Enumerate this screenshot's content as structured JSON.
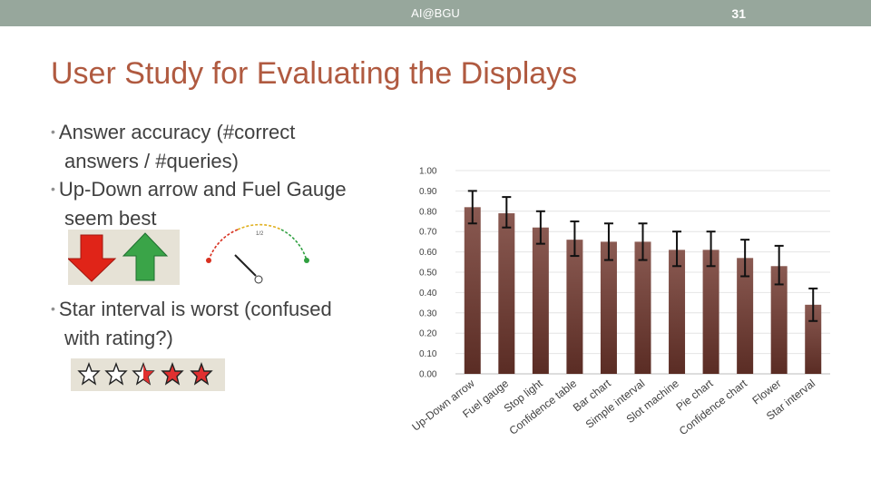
{
  "header": {
    "center_text": "AI@BGU",
    "page_number": "31"
  },
  "slide": {
    "title": "User Study for Evaluating the Displays",
    "bullets": [
      {
        "first": "Answer accuracy (#correct",
        "second": "answers / #queries)"
      },
      {
        "first": "Up-Down arrow and Fuel Gauge",
        "second": "seem best"
      },
      {
        "first": "Star interval is worst (confused",
        "second": "with rating?)"
      }
    ]
  },
  "gauge": {
    "label": "1/2"
  },
  "colors": {
    "title": "#b05a40",
    "topbar": "#97a79c",
    "bar_top": "#8a5a52",
    "bar_bottom": "#5a2c24"
  },
  "chart_data": {
    "type": "bar",
    "ylim": [
      0,
      1.0
    ],
    "yticks": [
      "0.00",
      "0.10",
      "0.20",
      "0.30",
      "0.40",
      "0.50",
      "0.60",
      "0.70",
      "0.80",
      "0.90",
      "1.00"
    ],
    "categories": [
      "Up-Down arrow",
      "Fuel gauge",
      "Stop light",
      "Confidence table",
      "Bar chart",
      "Simple interval",
      "Slot machine",
      "Pie chart",
      "Confidence chart",
      "Flower",
      "Star interval"
    ],
    "values": [
      0.82,
      0.79,
      0.72,
      0.66,
      0.65,
      0.65,
      0.61,
      0.61,
      0.57,
      0.53,
      0.34
    ],
    "error_upper": [
      0.9,
      0.87,
      0.8,
      0.75,
      0.74,
      0.74,
      0.7,
      0.7,
      0.66,
      0.63,
      0.42
    ],
    "error_lower": [
      0.74,
      0.72,
      0.64,
      0.58,
      0.56,
      0.56,
      0.53,
      0.53,
      0.48,
      0.44,
      0.26
    ]
  }
}
